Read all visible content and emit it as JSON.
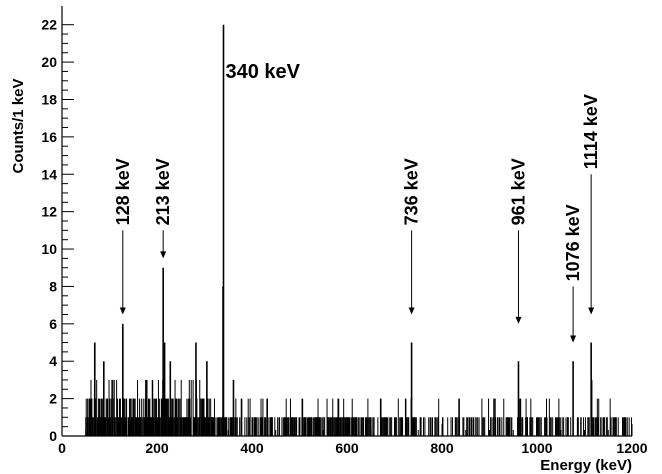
{
  "chart_data": {
    "type": "histogram",
    "xlabel": "Energy (keV)",
    "ylabel": "Counts/1 keV",
    "xlim": [
      0,
      1200
    ],
    "ylim": [
      0,
      23
    ],
    "x_ticks": [
      0,
      200,
      400,
      600,
      800,
      1000,
      1200
    ],
    "y_ticks": [
      0,
      2,
      4,
      6,
      8,
      10,
      12,
      14,
      16,
      18,
      20,
      22
    ],
    "grid": false,
    "peaks": [
      {
        "energy": 69,
        "counts": 5
      },
      {
        "energy": 88,
        "counts": 4
      },
      {
        "energy": 128,
        "counts": 6
      },
      {
        "energy": 213,
        "counts": 9
      },
      {
        "energy": 216,
        "counts": 5
      },
      {
        "energy": 228,
        "counts": 4
      },
      {
        "energy": 282,
        "counts": 5
      },
      {
        "energy": 305,
        "counts": 4
      },
      {
        "energy": 340,
        "counts": 22
      },
      {
        "energy": 339,
        "counts": 8
      },
      {
        "energy": 361,
        "counts": 3
      },
      {
        "energy": 378,
        "counts": 2
      },
      {
        "energy": 432,
        "counts": 2
      },
      {
        "energy": 506,
        "counts": 2
      },
      {
        "energy": 582,
        "counts": 2
      },
      {
        "energy": 671,
        "counts": 2
      },
      {
        "energy": 736,
        "counts": 5
      },
      {
        "energy": 836,
        "counts": 2
      },
      {
        "energy": 961,
        "counts": 4
      },
      {
        "energy": 965,
        "counts": 2
      },
      {
        "energy": 1076,
        "counts": 4
      },
      {
        "energy": 1114,
        "counts": 5
      },
      {
        "energy": 1115,
        "counts": 3
      }
    ],
    "background_range": [
      50,
      1200
    ],
    "annotations": [
      {
        "label": "128 keV",
        "energy": 128,
        "arrow_top": 11.0,
        "arrow_bottom": 6.5
      },
      {
        "label": "213 keV",
        "energy": 213,
        "arrow_top": 11.0,
        "arrow_bottom": 9.5
      },
      {
        "label": "340 keV",
        "energy": 340,
        "arrow_top": null,
        "arrow_bottom": null
      },
      {
        "label": "736 keV",
        "energy": 736,
        "arrow_top": 11.0,
        "arrow_bottom": 6.5
      },
      {
        "label": "961 keV",
        "energy": 961,
        "arrow_top": 11.0,
        "arrow_bottom": 6.0
      },
      {
        "label": "1076 keV",
        "energy": 1076,
        "arrow_top": 8.0,
        "arrow_bottom": 5.0
      },
      {
        "label": "1114 keV",
        "energy": 1114,
        "arrow_top": 14.0,
        "arrow_bottom": 6.5
      }
    ]
  }
}
